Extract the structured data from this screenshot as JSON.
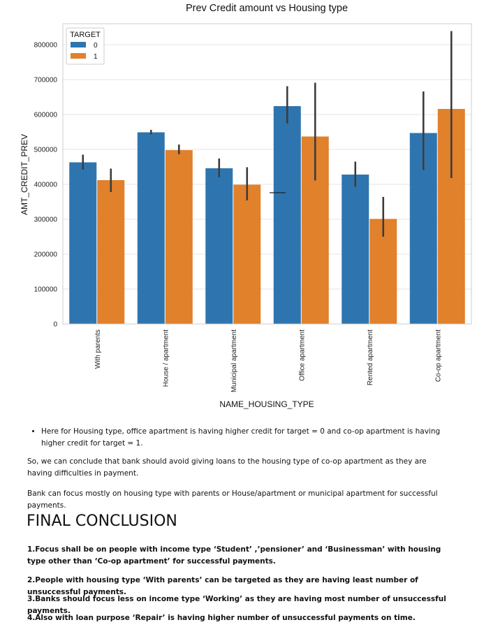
{
  "chart_data": {
    "type": "bar",
    "title": "Prev Credit amount vs Housing type",
    "xlabel": "NAME_HOUSING_TYPE",
    "ylabel": "AMT_CREDIT_PREV",
    "categories": [
      "With parents",
      "House / apartment",
      "Municipal apartment",
      "Office apartment",
      "Rented apartment",
      "Co-op apartment"
    ],
    "ylim": [
      0,
      860000
    ],
    "yticks": [
      0,
      100000,
      200000,
      300000,
      400000,
      500000,
      600000,
      700000,
      800000
    ],
    "legend": {
      "title": "TARGET",
      "placement": "top-left"
    },
    "grid": "horizontal",
    "series": [
      {
        "name": "0",
        "color": "#2e75b0",
        "values": [
          463000,
          549000,
          446000,
          624000,
          428000,
          547000
        ],
        "ci_low": [
          442000,
          543000,
          420000,
          574000,
          393000,
          441000
        ],
        "ci_high": [
          485000,
          556000,
          474000,
          681000,
          465000,
          666000
        ]
      },
      {
        "name": "1",
        "color": "#e1812c",
        "values": [
          412000,
          498000,
          399000,
          537000,
          301000,
          616000
        ],
        "ci_low": [
          378000,
          486000,
          354000,
          411000,
          250000,
          418000
        ],
        "ci_high": [
          445000,
          514000,
          449000,
          691000,
          364000,
          839000
        ]
      }
    ]
  },
  "text": {
    "bullet": "Here for Housing type, office apartment is having higher credit for target = 0 and co-op apartment is having higher credit for target = 1.",
    "p1": "So, we can conclude that bank should avoid giving loans to the housing type of co-op apartment as they are having difficulties in payment.",
    "p2": "Bank can focus mostly on housing type with parents or House/apartment or municipal apartment for successful payments.",
    "heading": "FINAL CONCLUSION",
    "c1": "1.Focus shall be on people with income type ‘Student’ ,’pensioner’ and ‘Businessman’ with housing type other than ‘Co-op apartment’ for successful payments.",
    "c2": "2.People with housing type ‘With parents’ can be targeted as they are having least number of unsuccessful payments.",
    "c3": "3.Banks should focus less on income type ‘Working’ as they are having most number of unsuccessful payments.",
    "c4": "4.Also with loan purpose ‘Repair’ is having higher number of unsuccessful payments on time."
  }
}
